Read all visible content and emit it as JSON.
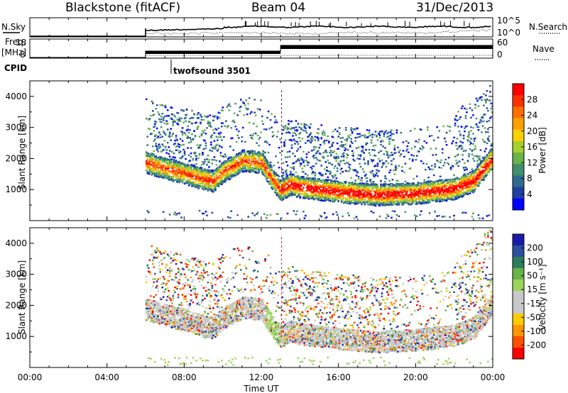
{
  "header": {
    "station": "Blackstone (fitACF)",
    "beam": "Beam 04",
    "date": "31/Dec/2013"
  },
  "strips": {
    "nsky_label": "N.Sky",
    "nsky_ticks": [
      "10^5",
      "10^0"
    ],
    "nsearch_label": "N.Search",
    "freq_label": "Freq.",
    "freq_unit": "[MHz]",
    "freq_ticks": [
      "18",
      "8"
    ],
    "nave_label": "Nave",
    "nave_ticks": [
      "60",
      "0"
    ],
    "cpid_label": "CPID",
    "cpid_value": "twofsound 3501"
  },
  "colors": {
    "power_scale": [
      "#0000ff",
      "#1f3fa0",
      "#2e6a8e",
      "#3f8f6a",
      "#6ab24a",
      "#a6cf2f",
      "#ffd000",
      "#ffa000",
      "#ff7000",
      "#ff3000",
      "#ff0000"
    ],
    "velocity_scale": [
      "#ff0000",
      "#ff5000",
      "#ff9500",
      "#ffcc00",
      "#c8c8c8",
      "#c8c8c8",
      "#9cd55a",
      "#6ab24a",
      "#2e7d5a",
      "#2a4fa0",
      "#1a1aa8"
    ]
  },
  "chart_data": [
    {
      "type": "heatmap",
      "panel": "power",
      "ylabel": "Slant Range [km]",
      "ylim": [
        0,
        4500
      ],
      "yticks": [
        "1000",
        "2000",
        "3000",
        "4000"
      ],
      "xlabel": "Time UT",
      "xlim": [
        "00:00",
        "24:00"
      ],
      "colorbar_label": "Power [dB]",
      "colorbar_ticks": [
        "4",
        "8",
        "12",
        "16",
        "20",
        "24",
        "28"
      ],
      "colorbar_range": [
        0,
        30
      ],
      "main_echo_band": {
        "times_hours": [
          6.0,
          7.0,
          8.0,
          9.0,
          9.5,
          10.0,
          11.0,
          12.0,
          12.5,
          13.0,
          13.5,
          14.0,
          16.0,
          18.0,
          20.0,
          22.0,
          23.0,
          23.9
        ],
        "range_km": [
          1900,
          1700,
          1550,
          1350,
          1300,
          1600,
          1950,
          1900,
          1400,
          1000,
          1200,
          1100,
          950,
          850,
          900,
          1050,
          1300,
          2000
        ]
      }
    },
    {
      "type": "heatmap",
      "panel": "velocity",
      "ylabel": "Slant Range [km]",
      "ylim": [
        0,
        4500
      ],
      "yticks": [
        "1000",
        "2000",
        "3000",
        "4000"
      ],
      "xlabel": "Time UT",
      "xlim": [
        "00:00",
        "24:00"
      ],
      "xticks": [
        "00:00",
        "04:00",
        "08:00",
        "12:00",
        "16:00",
        "20:00",
        "00:00"
      ],
      "colorbar_label": "Velocity [m s⁻¹]",
      "colorbar_ticks": [
        "200",
        "100",
        "50",
        "15",
        "-15",
        "-50",
        "-100",
        "-200"
      ]
    }
  ]
}
